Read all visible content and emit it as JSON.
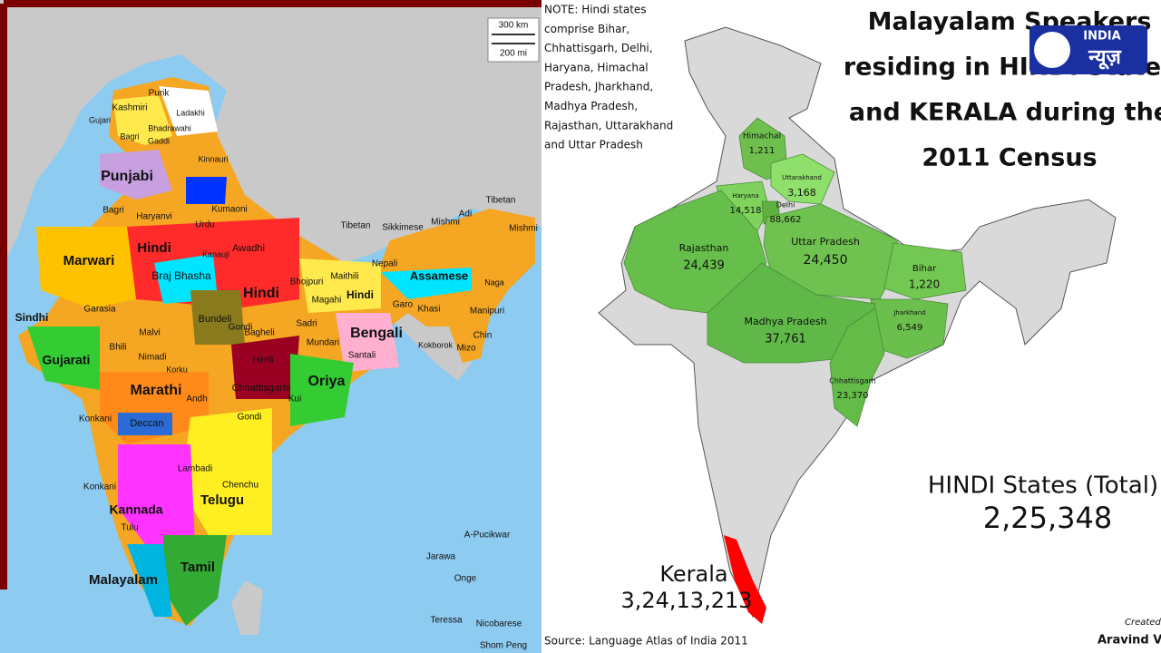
{
  "left_map": {
    "scale": [
      "300 km",
      "200 mi"
    ],
    "labels": [
      "Purik",
      "Kashmiri",
      "Ladakhi",
      "Gujari",
      "Bagri",
      "Bhadrawahi",
      "Gaddi",
      "Kinnauri",
      "Punjabi",
      "Bagri",
      "Haryanvi",
      "Kumaoni",
      "Urdu",
      "Hindi",
      "Awadhi",
      "Marwari",
      "Kanauji",
      "Braj Bhasha",
      "Bhojpuri",
      "Maithili",
      "Nepali",
      "Assamese",
      "Mishmi",
      "Adi",
      "Tibetan",
      "Tibetan",
      "Sikkimese",
      "Mishmi",
      "Naga",
      "Garo",
      "Khasi",
      "Manipuri",
      "Hindi",
      "Magahi",
      "Hindi",
      "Bundeli",
      "Bagheli",
      "Sadri",
      "Mundari",
      "Santali",
      "Bengali",
      "Kokborok",
      "Mizo",
      "Chin",
      "Sindhi",
      "Garasia",
      "Malvi",
      "Gujarati",
      "Bhili",
      "Nimadi",
      "Korku",
      "Gondi",
      "Hindi",
      "Chhattisgarhi",
      "Oriya",
      "Marathi",
      "Andh",
      "Kui",
      "Konkani",
      "Deccan",
      "Gondi",
      "Lambadi",
      "Konkani",
      "Chenchu",
      "Telugu",
      "Kannada",
      "Tulu",
      "Tamil",
      "Malayalam",
      "A-Pucikwar",
      "Jarawa",
      "Onge",
      "Teressa",
      "Nicobarese",
      "Shom Peng"
    ]
  },
  "right_map": {
    "note": [
      "NOTE: Hindi states",
      "comprise Bihar,",
      "Chhattisgarh, Delhi,",
      "Haryana, Himachal",
      "Pradesh, Jharkhand,",
      "Madhya Pradesh,",
      "Rajasthan, Uttarakhand",
      "and Uttar Pradesh"
    ],
    "title": [
      "Malayalam Speakers",
      "residing in HINDI States",
      "and KERALA during the",
      "2011 Census"
    ],
    "logo": {
      "top": "INDIA",
      "bottom": "न्यूज़"
    },
    "states": [
      {
        "name": "Himachal",
        "value": "1,211"
      },
      {
        "name": "Uttarakhand",
        "value": "3,168"
      },
      {
        "name": "Haryana",
        "value": "14,518"
      },
      {
        "name": "Delhi",
        "value": "88,662"
      },
      {
        "name": "Rajasthan",
        "value": "24,439"
      },
      {
        "name": "Uttar Pradesh",
        "value": "24,450"
      },
      {
        "name": "Bihar",
        "value": "1,220"
      },
      {
        "name": "Jharkhand",
        "value": "6,549"
      },
      {
        "name": "Madhya Pradesh",
        "value": "37,761"
      },
      {
        "name": "Chhattisgarh",
        "value": "23,370"
      }
    ],
    "total": {
      "label": "HINDI States (Total)",
      "value": "2,25,348"
    },
    "kerala": {
      "name": "Kerala",
      "value": "3,24,13,213"
    },
    "source": "Source: Language Atlas of India 2011",
    "credit": [
      "Created",
      "Aravind Va"
    ]
  }
}
